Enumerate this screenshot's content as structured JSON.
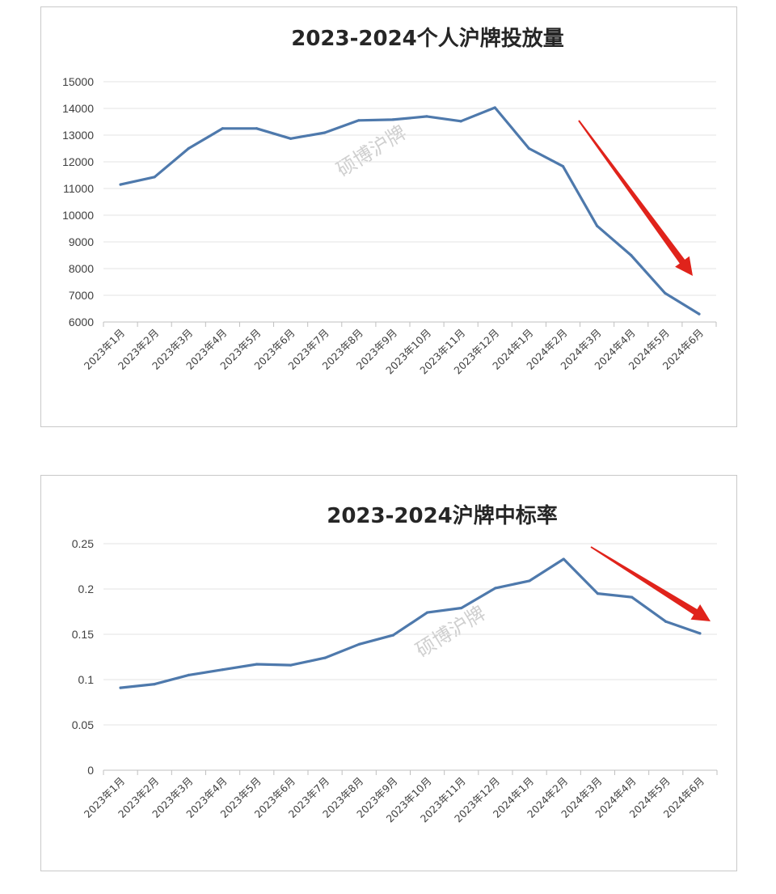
{
  "chart_data": [
    {
      "type": "line",
      "title": "2023-2024个人沪牌投放量",
      "categories": [
        "2023年1月",
        "2023年2月",
        "2023年3月",
        "2023年4月",
        "2023年5月",
        "2023年6月",
        "2023年7月",
        "2023年8月",
        "2023年9月",
        "2023年10月",
        "2023年11月",
        "2023年12月",
        "2024年1月",
        "2024年2月",
        "2024年3月",
        "2024年4月",
        "2024年5月",
        "2024年6月"
      ],
      "values": [
        11150,
        11430,
        12500,
        13250,
        13250,
        12870,
        13090,
        13550,
        13580,
        13700,
        13520,
        14030,
        12500,
        11830,
        9600,
        8500,
        7080,
        6300
      ],
      "yticks": [
        "6000",
        "7000",
        "8000",
        "9000",
        "10000",
        "11000",
        "12000",
        "13000",
        "14000",
        "15000"
      ],
      "ylim": [
        6000,
        15000
      ],
      "grid": true,
      "watermark": "硕博沪牌",
      "series_color": "#4e79ac",
      "arrow_color": "#e0231b"
    },
    {
      "type": "line",
      "title": "2023-2024沪牌中标率",
      "categories": [
        "2023年1月",
        "2023年2月",
        "2023年3月",
        "2023年4月",
        "2023年5月",
        "2023年6月",
        "2023年7月",
        "2023年8月",
        "2023年9月",
        "2023年10月",
        "2023年11月",
        "2023年12月",
        "2024年1月",
        "2024年2月",
        "2024年3月",
        "2024年4月",
        "2024年5月",
        "2024年6月"
      ],
      "values": [
        0.091,
        0.095,
        0.105,
        0.111,
        0.117,
        0.116,
        0.124,
        0.139,
        0.149,
        0.174,
        0.179,
        0.201,
        0.209,
        0.233,
        0.195,
        0.191,
        0.164,
        0.151
      ],
      "yticks": [
        "0",
        "0.05",
        "0.1",
        "0.15",
        "0.2",
        "0.25"
      ],
      "ylim": [
        0,
        0.25
      ],
      "grid": true,
      "watermark": "硕博沪牌",
      "series_color": "#4e79ac",
      "arrow_color": "#e0231b"
    }
  ]
}
